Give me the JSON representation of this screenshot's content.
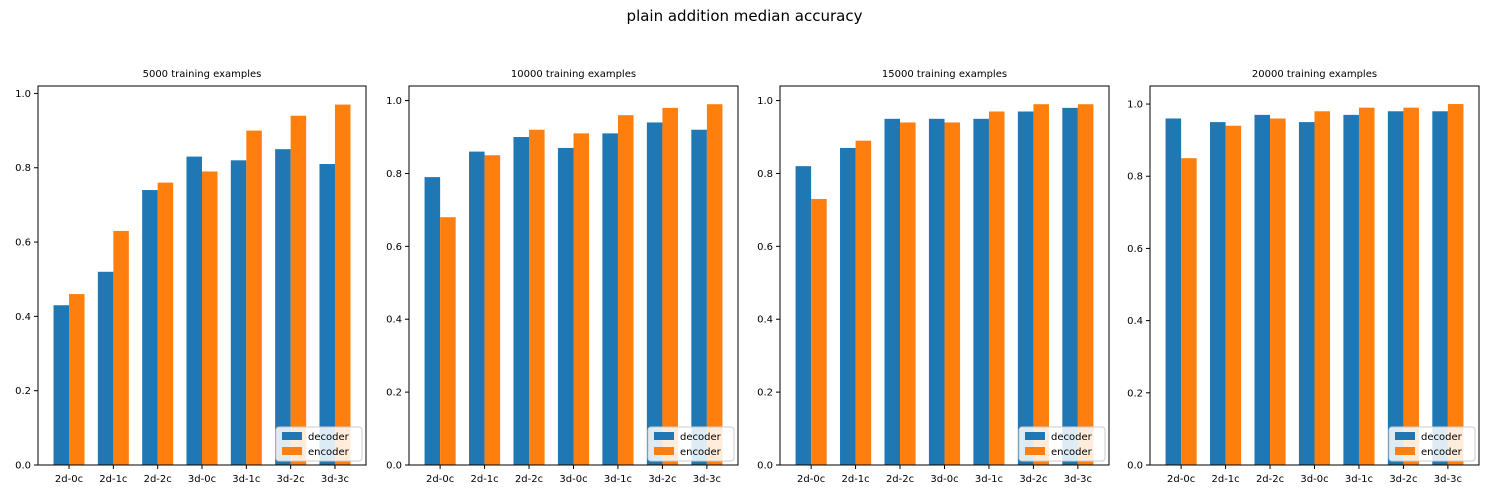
{
  "figure": {
    "suptitle": "plain addition median accuracy"
  },
  "colors": {
    "decoder": "#1f77b4",
    "encoder": "#ff7f0e"
  },
  "chart_data": [
    {
      "type": "bar",
      "title": "5000 training examples",
      "categories": [
        "2d-0c",
        "2d-1c",
        "2d-2c",
        "3d-0c",
        "3d-1c",
        "3d-2c",
        "3d-3c"
      ],
      "series": [
        {
          "name": "decoder",
          "values": [
            0.43,
            0.52,
            0.74,
            0.83,
            0.82,
            0.85,
            0.81
          ]
        },
        {
          "name": "encoder",
          "values": [
            0.46,
            0.63,
            0.76,
            0.79,
            0.9,
            0.94,
            0.97
          ]
        }
      ],
      "ylim": [
        0,
        1.02
      ],
      "yticks": [
        0.0,
        0.2,
        0.4,
        0.6,
        0.8,
        1.0
      ],
      "legend": "lower right"
    },
    {
      "type": "bar",
      "title": "10000 training examples",
      "categories": [
        "2d-0c",
        "2d-1c",
        "2d-2c",
        "3d-0c",
        "3d-1c",
        "3d-2c",
        "3d-3c"
      ],
      "series": [
        {
          "name": "decoder",
          "values": [
            0.79,
            0.86,
            0.9,
            0.87,
            0.91,
            0.94,
            0.92
          ]
        },
        {
          "name": "encoder",
          "values": [
            0.68,
            0.85,
            0.92,
            0.91,
            0.96,
            0.98,
            0.99
          ]
        }
      ],
      "ylim": [
        0,
        1.04
      ],
      "yticks": [
        0.0,
        0.2,
        0.4,
        0.6,
        0.8,
        1.0
      ],
      "legend": "lower right"
    },
    {
      "type": "bar",
      "title": "15000 training examples",
      "categories": [
        "2d-0c",
        "2d-1c",
        "2d-2c",
        "3d-0c",
        "3d-1c",
        "3d-2c",
        "3d-3c"
      ],
      "series": [
        {
          "name": "decoder",
          "values": [
            0.82,
            0.87,
            0.95,
            0.95,
            0.95,
            0.97,
            0.98
          ]
        },
        {
          "name": "encoder",
          "values": [
            0.73,
            0.89,
            0.94,
            0.94,
            0.97,
            0.99,
            0.99
          ]
        }
      ],
      "ylim": [
        0,
        1.04
      ],
      "yticks": [
        0.0,
        0.2,
        0.4,
        0.6,
        0.8,
        1.0
      ],
      "legend": "lower right"
    },
    {
      "type": "bar",
      "title": "20000 training examples",
      "categories": [
        "2d-0c",
        "2d-1c",
        "2d-2c",
        "3d-0c",
        "3d-1c",
        "3d-2c",
        "3d-3c"
      ],
      "series": [
        {
          "name": "decoder",
          "values": [
            0.96,
            0.95,
            0.97,
            0.95,
            0.97,
            0.98,
            0.98
          ]
        },
        {
          "name": "encoder",
          "values": [
            0.85,
            0.94,
            0.96,
            0.98,
            0.99,
            0.99,
            1.0
          ]
        }
      ],
      "ylim": [
        0,
        1.05
      ],
      "yticks": [
        0.0,
        0.2,
        0.4,
        0.6,
        0.8,
        1.0
      ],
      "legend": "lower right"
    }
  ]
}
